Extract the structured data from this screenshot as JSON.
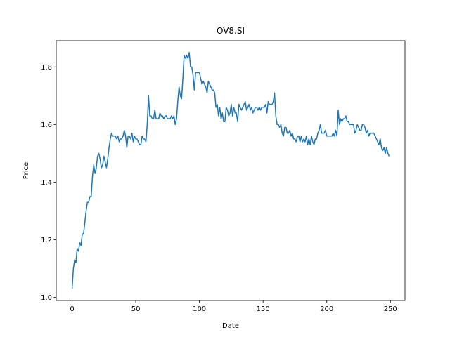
{
  "chart_data": {
    "type": "line",
    "title": "OV8.SI",
    "xlabel": "Date",
    "ylabel": "Price",
    "xlim": [
      -12.45,
      261.45
    ],
    "ylim": [
      0.989,
      1.891
    ],
    "xticks": [
      0,
      50,
      100,
      150,
      200,
      250
    ],
    "xtick_labels": [
      "0",
      "50",
      "100",
      "150",
      "200",
      "250"
    ],
    "yticks": [
      1.0,
      1.2,
      1.4,
      1.6,
      1.8
    ],
    "ytick_labels": [
      "1.0",
      "1.2",
      "1.4",
      "1.6",
      "1.8"
    ],
    "grid": false,
    "legend": "none",
    "series": [
      {
        "color": "#1f77b4",
        "points": [
          [
            0,
            1.03
          ],
          [
            1,
            1.1
          ],
          [
            2,
            1.13
          ],
          [
            3,
            1.12
          ],
          [
            4,
            1.17
          ],
          [
            5,
            1.16
          ],
          [
            6,
            1.19
          ],
          [
            7,
            1.18
          ],
          [
            8,
            1.22
          ],
          [
            9,
            1.22
          ],
          [
            10,
            1.26
          ],
          [
            11,
            1.3
          ],
          [
            12,
            1.33
          ],
          [
            13,
            1.33
          ],
          [
            14,
            1.35
          ],
          [
            15,
            1.35
          ],
          [
            16,
            1.42
          ],
          [
            17,
            1.46
          ],
          [
            18,
            1.43
          ],
          [
            19,
            1.45
          ],
          [
            20,
            1.49
          ],
          [
            21,
            1.5
          ],
          [
            22,
            1.48
          ],
          [
            23,
            1.45
          ],
          [
            24,
            1.46
          ],
          [
            25,
            1.49
          ],
          [
            26,
            1.47
          ],
          [
            27,
            1.45
          ],
          [
            28,
            1.48
          ],
          [
            29,
            1.52
          ],
          [
            30,
            1.55
          ],
          [
            31,
            1.57
          ],
          [
            32,
            1.56
          ],
          [
            33,
            1.56
          ],
          [
            34,
            1.56
          ],
          [
            35,
            1.55
          ],
          [
            36,
            1.56
          ],
          [
            37,
            1.54
          ],
          [
            38,
            1.55
          ],
          [
            39,
            1.55
          ],
          [
            40,
            1.56
          ],
          [
            41,
            1.58
          ],
          [
            42,
            1.56
          ],
          [
            43,
            1.52
          ],
          [
            44,
            1.56
          ],
          [
            45,
            1.56
          ],
          [
            46,
            1.55
          ],
          [
            47,
            1.57
          ],
          [
            48,
            1.54
          ],
          [
            49,
            1.56
          ],
          [
            50,
            1.55
          ],
          [
            51,
            1.55
          ],
          [
            52,
            1.54
          ],
          [
            53,
            1.53
          ],
          [
            54,
            1.53
          ],
          [
            55,
            1.56
          ],
          [
            56,
            1.55
          ],
          [
            57,
            1.55
          ],
          [
            58,
            1.54
          ],
          [
            59,
            1.6
          ],
          [
            60,
            1.7
          ],
          [
            61,
            1.63
          ],
          [
            62,
            1.63
          ],
          [
            63,
            1.62
          ],
          [
            64,
            1.62
          ],
          [
            65,
            1.65
          ],
          [
            66,
            1.62
          ],
          [
            67,
            1.62
          ],
          [
            68,
            1.62
          ],
          [
            69,
            1.64
          ],
          [
            70,
            1.63
          ],
          [
            71,
            1.63
          ],
          [
            72,
            1.62
          ],
          [
            73,
            1.63
          ],
          [
            74,
            1.63
          ],
          [
            75,
            1.62
          ],
          [
            76,
            1.62
          ],
          [
            77,
            1.62
          ],
          [
            78,
            1.63
          ],
          [
            79,
            1.62
          ],
          [
            80,
            1.63
          ],
          [
            81,
            1.6
          ],
          [
            82,
            1.62
          ],
          [
            83,
            1.68
          ],
          [
            84,
            1.73
          ],
          [
            85,
            1.7
          ],
          [
            86,
            1.69
          ],
          [
            87,
            1.76
          ],
          [
            88,
            1.84
          ],
          [
            89,
            1.83
          ],
          [
            90,
            1.84
          ],
          [
            91,
            1.83
          ],
          [
            92,
            1.85
          ],
          [
            93,
            1.8
          ],
          [
            94,
            1.8
          ],
          [
            95,
            1.77
          ],
          [
            96,
            1.72
          ],
          [
            97,
            1.78
          ],
          [
            98,
            1.78
          ],
          [
            99,
            1.78
          ],
          [
            100,
            1.78
          ],
          [
            101,
            1.76
          ],
          [
            102,
            1.74
          ],
          [
            103,
            1.75
          ],
          [
            104,
            1.74
          ],
          [
            105,
            1.73
          ],
          [
            106,
            1.71
          ],
          [
            107,
            1.75
          ],
          [
            108,
            1.74
          ],
          [
            109,
            1.73
          ],
          [
            110,
            1.72
          ],
          [
            111,
            1.72
          ],
          [
            112,
            1.71
          ],
          [
            113,
            1.66
          ],
          [
            114,
            1.67
          ],
          [
            115,
            1.63
          ],
          [
            116,
            1.66
          ],
          [
            117,
            1.62
          ],
          [
            118,
            1.64
          ],
          [
            119,
            1.61
          ],
          [
            120,
            1.61
          ],
          [
            121,
            1.66
          ],
          [
            122,
            1.65
          ],
          [
            123,
            1.63
          ],
          [
            124,
            1.64
          ],
          [
            125,
            1.67
          ],
          [
            126,
            1.63
          ],
          [
            127,
            1.66
          ],
          [
            128,
            1.64
          ],
          [
            129,
            1.64
          ],
          [
            130,
            1.61
          ],
          [
            131,
            1.67
          ],
          [
            132,
            1.66
          ],
          [
            133,
            1.65
          ],
          [
            134,
            1.66
          ],
          [
            135,
            1.67
          ],
          [
            136,
            1.68
          ],
          [
            137,
            1.65
          ],
          [
            138,
            1.66
          ],
          [
            139,
            1.67
          ],
          [
            140,
            1.65
          ],
          [
            141,
            1.66
          ],
          [
            142,
            1.64
          ],
          [
            143,
            1.65
          ],
          [
            144,
            1.66
          ],
          [
            145,
            1.66
          ],
          [
            146,
            1.65
          ],
          [
            147,
            1.66
          ],
          [
            148,
            1.65
          ],
          [
            149,
            1.66
          ],
          [
            150,
            1.66
          ],
          [
            151,
            1.66
          ],
          [
            152,
            1.67
          ],
          [
            153,
            1.64
          ],
          [
            154,
            1.68
          ],
          [
            155,
            1.67
          ],
          [
            156,
            1.67
          ],
          [
            157,
            1.67
          ],
          [
            158,
            1.68
          ],
          [
            159,
            1.71
          ],
          [
            160,
            1.63
          ],
          [
            161,
            1.6
          ],
          [
            162,
            1.6
          ],
          [
            163,
            1.59
          ],
          [
            164,
            1.6
          ],
          [
            165,
            1.57
          ],
          [
            166,
            1.56
          ],
          [
            167,
            1.59
          ],
          [
            168,
            1.59
          ],
          [
            169,
            1.57
          ],
          [
            170,
            1.57
          ],
          [
            171,
            1.58
          ],
          [
            172,
            1.56
          ],
          [
            173,
            1.57
          ],
          [
            174,
            1.55
          ],
          [
            175,
            1.55
          ],
          [
            176,
            1.54
          ],
          [
            177,
            1.56
          ],
          [
            178,
            1.56
          ],
          [
            179,
            1.54
          ],
          [
            180,
            1.56
          ],
          [
            181,
            1.54
          ],
          [
            182,
            1.55
          ],
          [
            183,
            1.54
          ],
          [
            184,
            1.56
          ],
          [
            185,
            1.53
          ],
          [
            186,
            1.55
          ],
          [
            187,
            1.53
          ],
          [
            188,
            1.56
          ],
          [
            189,
            1.54
          ],
          [
            190,
            1.53
          ],
          [
            191,
            1.55
          ],
          [
            192,
            1.55
          ],
          [
            193,
            1.57
          ],
          [
            194,
            1.58
          ],
          [
            195,
            1.6
          ],
          [
            196,
            1.57
          ],
          [
            197,
            1.57
          ],
          [
            198,
            1.57
          ],
          [
            199,
            1.58
          ],
          [
            200,
            1.56
          ],
          [
            201,
            1.56
          ],
          [
            202,
            1.56
          ],
          [
            203,
            1.56
          ],
          [
            204,
            1.56
          ],
          [
            205,
            1.57
          ],
          [
            206,
            1.56
          ],
          [
            207,
            1.58
          ],
          [
            208,
            1.56
          ],
          [
            209,
            1.65
          ],
          [
            210,
            1.6
          ],
          [
            211,
            1.62
          ],
          [
            212,
            1.61
          ],
          [
            213,
            1.62
          ],
          [
            214,
            1.62
          ],
          [
            215,
            1.63
          ],
          [
            216,
            1.61
          ],
          [
            217,
            1.61
          ],
          [
            218,
            1.6
          ],
          [
            219,
            1.6
          ],
          [
            220,
            1.6
          ],
          [
            221,
            1.6
          ],
          [
            222,
            1.57
          ],
          [
            223,
            1.58
          ],
          [
            224,
            1.6
          ],
          [
            225,
            1.59
          ],
          [
            226,
            1.58
          ],
          [
            227,
            1.58
          ],
          [
            228,
            1.6
          ],
          [
            229,
            1.6
          ],
          [
            230,
            1.59
          ],
          [
            231,
            1.57
          ],
          [
            232,
            1.58
          ],
          [
            233,
            1.56
          ],
          [
            234,
            1.57
          ],
          [
            235,
            1.57
          ],
          [
            236,
            1.57
          ],
          [
            237,
            1.57
          ],
          [
            238,
            1.56
          ],
          [
            239,
            1.55
          ],
          [
            240,
            1.54
          ],
          [
            241,
            1.53
          ],
          [
            242,
            1.55
          ],
          [
            243,
            1.52
          ],
          [
            244,
            1.51
          ],
          [
            245,
            1.52
          ],
          [
            246,
            1.5
          ],
          [
            247,
            1.52
          ],
          [
            248,
            1.5
          ],
          [
            249,
            1.49
          ]
        ]
      }
    ]
  }
}
